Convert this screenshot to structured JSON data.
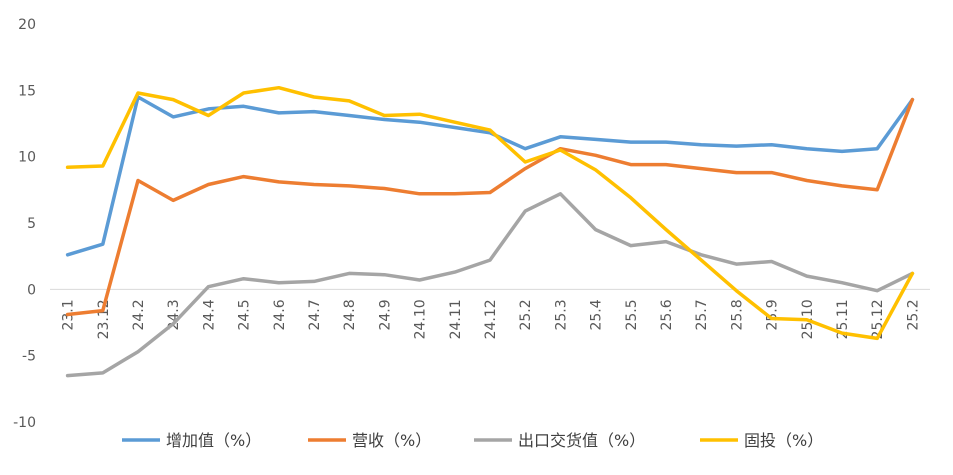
{
  "chart_data": {
    "type": "line",
    "title": "",
    "xlabel": "",
    "ylabel": "",
    "ylim": [
      -10,
      20
    ],
    "yticks": [
      20,
      15,
      10,
      5,
      0,
      -5,
      -10
    ],
    "grid": false,
    "legend_position": "bottom",
    "categories": [
      "23.1",
      "23.12",
      "24.2",
      "24.3",
      "24.4",
      "24.5",
      "24.6",
      "24.7",
      "24.8",
      "24.9",
      "24.10",
      "24.11",
      "24.12",
      "25.2",
      "25.3",
      "25.4",
      "25.5",
      "25.6",
      "25.7",
      "25.8",
      "25.9",
      "25.10",
      "25.11",
      "25.12",
      "25.2"
    ],
    "series": [
      {
        "name": "增加值（%）",
        "color": "#5B9BD5",
        "values": [
          2.6,
          3.4,
          14.5,
          13.0,
          13.6,
          13.8,
          13.3,
          13.4,
          13.1,
          12.8,
          12.6,
          12.2,
          11.8,
          10.6,
          11.5,
          11.3,
          11.1,
          11.1,
          10.9,
          10.8,
          10.9,
          10.6,
          10.4,
          10.6,
          14.3
        ]
      },
      {
        "name": "营收（%）",
        "color": "#ED7D31",
        "values": [
          -1.9,
          -1.6,
          8.2,
          6.7,
          7.9,
          8.5,
          8.1,
          7.9,
          7.8,
          7.6,
          7.2,
          7.2,
          7.3,
          9.1,
          10.6,
          10.1,
          9.4,
          9.4,
          9.1,
          8.8,
          8.8,
          8.2,
          7.8,
          7.5,
          14.3
        ]
      },
      {
        "name": "出口交货值（%）",
        "color": "#A5A5A5",
        "values": [
          -6.5,
          -6.3,
          -4.7,
          -2.6,
          0.2,
          0.8,
          0.5,
          0.6,
          1.2,
          1.1,
          0.7,
          1.3,
          2.2,
          5.9,
          7.2,
          4.5,
          3.3,
          3.6,
          2.6,
          1.9,
          2.1,
          1.0,
          0.5,
          -0.1,
          1.2
        ]
      },
      {
        "name": "固投（%）",
        "color": "#FFC000",
        "values": [
          9.2,
          9.3,
          14.8,
          14.3,
          13.1,
          14.8,
          15.2,
          14.5,
          14.2,
          13.1,
          13.2,
          12.6,
          12.0,
          9.6,
          10.5,
          9.0,
          6.9,
          4.5,
          2.2,
          -0.1,
          -2.2,
          -2.3,
          -3.3,
          -3.7,
          1.2
        ]
      }
    ]
  }
}
